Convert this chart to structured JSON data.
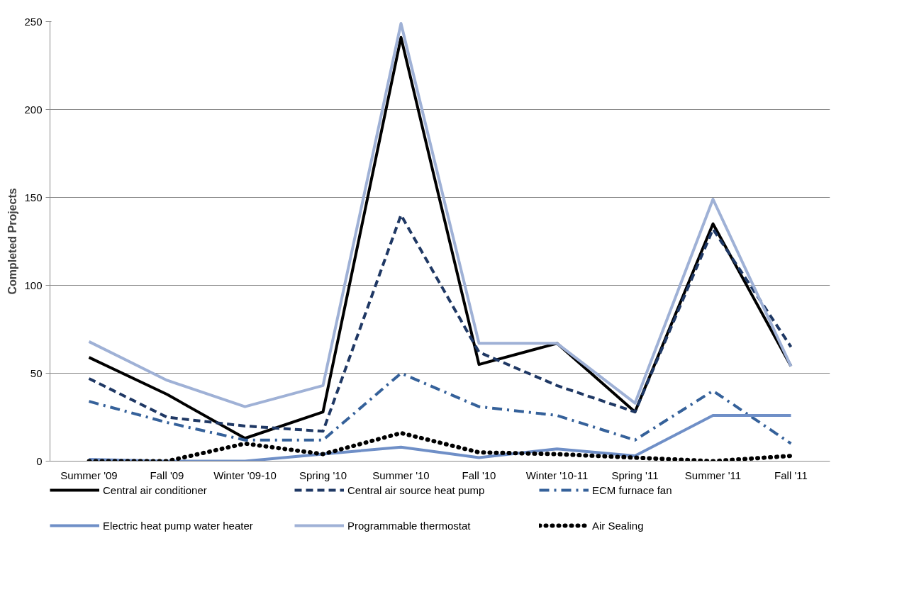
{
  "chart_data": {
    "type": "line",
    "ylabel": "Completed Projects",
    "categories": [
      "Summer '09",
      "Fall '09",
      "Winter '09-10",
      "Spring '10",
      "Summer '10",
      "Fall '10",
      "Winter '10-11",
      "Spring '11",
      "Summer '11",
      "Fall '11"
    ],
    "ylim": [
      0,
      250
    ],
    "yticks": [
      0,
      50,
      100,
      150,
      200,
      250
    ],
    "grid": "y",
    "legend": "bottom",
    "series": [
      {
        "name": "Central air conditioner",
        "color": "#000000",
        "line_style": "solid",
        "values": [
          59,
          38,
          13,
          28,
          241,
          55,
          67,
          28,
          135,
          54
        ]
      },
      {
        "name": "Central air source heat pump",
        "color": "#1f3864",
        "line_style": "dashed",
        "values": [
          47,
          25,
          20,
          17,
          140,
          62,
          43,
          28,
          132,
          65
        ]
      },
      {
        "name": "ECM furnace fan",
        "color": "#35619a",
        "line_style": "dashdot",
        "values": [
          34,
          22,
          12,
          12,
          50,
          31,
          26,
          12,
          40,
          10
        ]
      },
      {
        "name": "Electric heat pump water heater",
        "color": "#6f8fc7",
        "line_style": "solid",
        "values": [
          1,
          0,
          0,
          4,
          8,
          2,
          7,
          3,
          26,
          26
        ]
      },
      {
        "name": "Programmable thermostat",
        "color": "#9fb1d6",
        "line_style": "solid",
        "values": [
          68,
          46,
          31,
          43,
          249,
          67,
          67,
          33,
          149,
          54
        ]
      },
      {
        "name": "Air Sealing",
        "color": "#000000",
        "line_style": "dotted",
        "values": [
          0,
          0,
          10,
          4,
          16,
          5,
          4,
          2,
          0,
          3
        ]
      }
    ]
  }
}
